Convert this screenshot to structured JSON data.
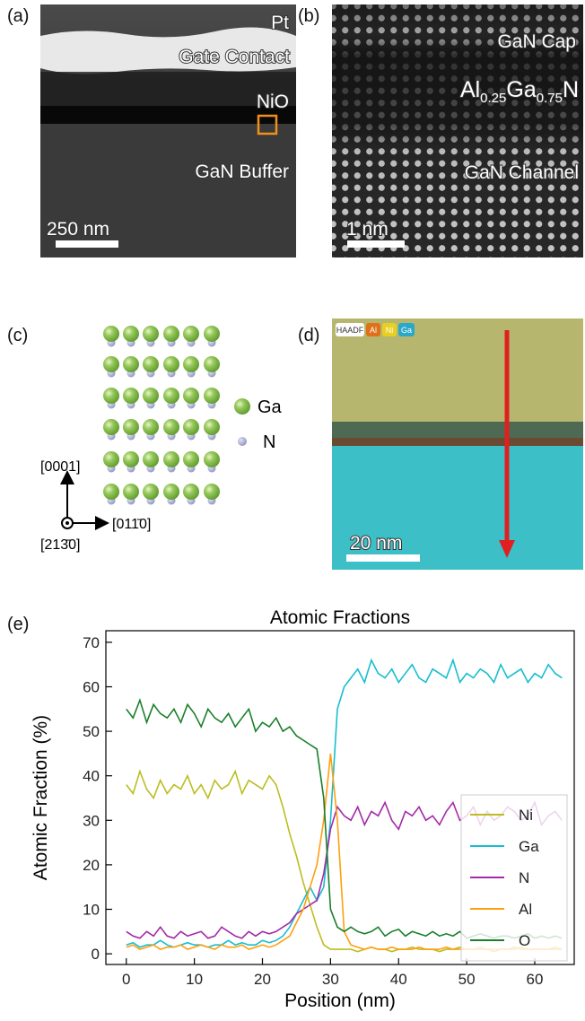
{
  "panel_a": {
    "label": "(a)",
    "pt": "Pt",
    "gate": "Gate Contact",
    "nio": "NiO",
    "buffer": "GaN Buffer",
    "scale": "250 nm"
  },
  "panel_b": {
    "label": "(b)",
    "cap": "GaN Cap",
    "barrier": [
      "Al",
      "0.25",
      "Ga",
      "0.75",
      "N"
    ],
    "channel": "GaN Channel",
    "scale": "1 nm"
  },
  "panel_c": {
    "label": "(c)",
    "legend": [
      "Ga",
      "N"
    ],
    "axes": [
      "[0001]",
      "[011̄0]",
      "[213̄0]"
    ]
  },
  "panel_d": {
    "label": "(d)",
    "tags": [
      "HAADF",
      "Al",
      "Ni",
      "Ga"
    ],
    "scale": "20 nm"
  },
  "chart_data": {
    "type": "line",
    "panel_label": "(e)",
    "title": "Atomic Fractions",
    "x_label": "Position (nm)",
    "y_label": "Atomic Fraction (%)",
    "xlim": [
      -3,
      65.8
    ],
    "ylim": [
      -2.4,
      72.6
    ],
    "xticks": [
      0,
      10,
      20,
      30,
      40,
      50,
      60
    ],
    "yticks": [
      0,
      10,
      20,
      30,
      40,
      50,
      60,
      70
    ],
    "legend": "lower right",
    "x": [
      0,
      1,
      2,
      3,
      4,
      5,
      6,
      7,
      8,
      9,
      10,
      11,
      12,
      13,
      14,
      15,
      16,
      17,
      18,
      19,
      20,
      21,
      22,
      23,
      24,
      25,
      26,
      27,
      28,
      29,
      30,
      31,
      32,
      33,
      34,
      35,
      36,
      37,
      38,
      39,
      40,
      41,
      42,
      43,
      44,
      45,
      46,
      47,
      48,
      49,
      50,
      51,
      52,
      53,
      54,
      55,
      56,
      57,
      58,
      59,
      60,
      61,
      62,
      63,
      64
    ],
    "series": [
      {
        "name": "Ni",
        "color": "#bcbd22",
        "values": [
          38,
          36,
          41,
          37,
          35,
          39,
          36,
          38,
          37,
          40,
          36,
          38,
          35,
          39,
          37,
          38,
          41,
          36,
          39,
          38,
          37,
          40,
          38,
          33,
          27,
          22,
          16,
          11,
          6,
          2,
          1,
          1,
          1,
          1,
          0.5,
          1,
          1.5,
          1,
          1,
          0.5,
          1,
          1,
          1.5,
          1,
          1,
          1,
          0.5,
          1,
          1,
          1.5,
          1,
          1,
          1,
          1,
          0.5,
          1,
          1,
          1,
          1.5,
          1,
          1,
          1,
          1,
          1,
          1
        ]
      },
      {
        "name": "Ga",
        "color": "#17becf",
        "values": [
          2,
          2.5,
          1.5,
          2,
          2,
          3,
          2,
          1.5,
          2,
          2.5,
          2,
          2,
          1.5,
          2,
          2,
          3,
          2,
          2.5,
          2,
          2,
          3,
          2.5,
          3,
          4,
          6,
          9,
          12,
          15,
          12,
          15,
          30,
          55,
          60,
          62,
          64,
          61,
          66,
          63,
          62,
          64,
          61,
          63,
          65,
          62,
          61,
          64,
          63,
          62,
          66,
          61,
          63,
          62,
          64,
          63,
          61,
          65,
          62,
          63,
          64,
          61,
          63,
          62,
          65,
          63,
          62
        ]
      },
      {
        "name": "N",
        "color": "#a32aa8",
        "values": [
          5,
          4,
          3.5,
          5,
          4,
          6,
          4,
          3.5,
          5,
          4,
          4.5,
          5,
          3.5,
          4,
          6,
          5,
          4,
          3.5,
          5,
          4,
          5,
          4.5,
          5,
          6,
          7,
          9,
          10,
          11,
          12,
          18,
          28,
          33,
          31,
          30,
          33,
          29,
          32,
          31,
          34,
          30,
          28,
          32,
          31,
          33,
          30,
          31,
          29,
          32,
          34,
          30,
          31,
          33,
          29,
          32,
          30,
          31,
          33,
          32,
          30,
          31,
          34,
          29,
          31,
          32,
          30
        ]
      },
      {
        "name": "Al",
        "color": "#ff9f10",
        "values": [
          1.5,
          2,
          1,
          1.5,
          2,
          1,
          1.5,
          1.5,
          2,
          1,
          1.5,
          2,
          1.5,
          1,
          2,
          1.5,
          1.5,
          2,
          1,
          1.5,
          2,
          1.5,
          2,
          3,
          4,
          7,
          10,
          15,
          20,
          30,
          45,
          30,
          5,
          2,
          1.5,
          1,
          1.5,
          1,
          1,
          1.5,
          1,
          1,
          1,
          1.5,
          1,
          1,
          1,
          1.5,
          1,
          1,
          1,
          1,
          1.5,
          1,
          1,
          1,
          1,
          1.5,
          1,
          1,
          1,
          1,
          1,
          1.5,
          1
        ]
      },
      {
        "name": "O",
        "color": "#1a7f2a",
        "values": [
          55,
          53,
          57,
          52,
          56,
          54,
          53,
          55,
          52,
          56,
          54,
          51,
          55,
          53,
          52,
          54,
          51,
          53,
          55,
          50,
          52,
          51,
          53,
          50,
          51,
          49,
          48,
          47,
          46,
          35,
          10,
          6,
          5,
          6,
          5,
          4.5,
          5,
          6,
          4,
          5,
          5.5,
          4,
          5,
          4.5,
          4,
          5,
          4,
          4.5,
          4,
          5,
          3.5,
          4,
          4.5,
          4,
          3.5,
          4,
          4,
          3.5,
          4,
          4.5,
          3.5,
          4,
          3.5,
          4,
          3.5
        ]
      }
    ]
  }
}
